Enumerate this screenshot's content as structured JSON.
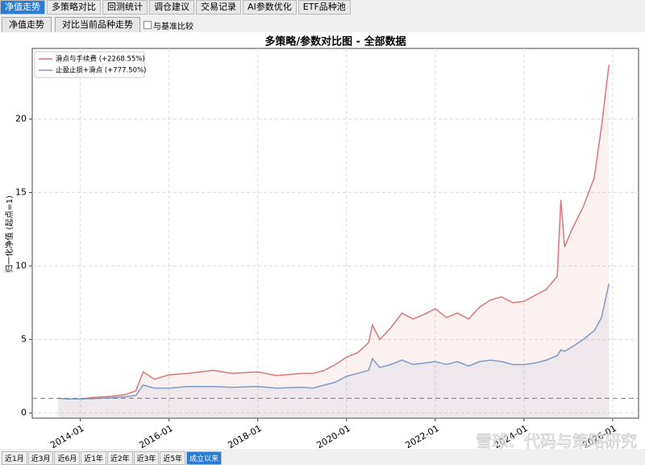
{
  "tabs": [
    "净值走势",
    "多策略对比",
    "回测统计",
    "调仓建议",
    "交易记录",
    "AI参数优化",
    "ETF品种池"
  ],
  "toolbar": {
    "buttons": [
      "净值走势",
      "对比当前品种走势"
    ],
    "checkbox": "与基准比较"
  },
  "range_buttons": [
    "近1月",
    "近3月",
    "近6月",
    "近1年",
    "近2年",
    "近3年",
    "近5年",
    "成立以来"
  ],
  "watermark": "雪球：代码与策略研究",
  "chart_data": {
    "type": "line",
    "title": "多策略/参数对比图 - 全部数据",
    "y_label": "归一化净值 (起点=1)",
    "x": [
      "2013-07",
      "2013-10",
      "2014-01",
      "2014-04",
      "2014-07",
      "2014-10",
      "2015-01",
      "2015-04",
      "2015-06",
      "2015-09",
      "2016-01",
      "2016-06",
      "2017-01",
      "2017-06",
      "2018-01",
      "2018-06",
      "2019-01",
      "2019-04",
      "2019-07",
      "2019-10",
      "2020-01",
      "2020-04",
      "2020-07",
      "2020-08",
      "2020-10",
      "2021-01",
      "2021-04",
      "2021-07",
      "2021-10",
      "2022-01",
      "2022-04",
      "2022-07",
      "2022-10",
      "2023-01",
      "2023-04",
      "2023-07",
      "2023-10",
      "2024-01",
      "2024-04",
      "2024-07",
      "2024-10",
      "2024-11",
      "2024-12",
      "2025-02",
      "2025-05",
      "2025-08",
      "2025-10",
      "2025-12"
    ],
    "series": [
      {
        "name": "滑点与手续费 (+2268.55%)",
        "color": "#d9777a",
        "values": [
          1.0,
          0.95,
          0.95,
          1.05,
          1.1,
          1.15,
          1.25,
          1.5,
          2.8,
          2.3,
          2.6,
          2.7,
          2.9,
          2.7,
          2.8,
          2.55,
          2.7,
          2.7,
          2.9,
          3.3,
          3.8,
          4.1,
          4.8,
          6.0,
          5.0,
          5.8,
          6.8,
          6.4,
          6.7,
          7.1,
          6.5,
          6.8,
          6.4,
          7.2,
          7.7,
          7.9,
          7.5,
          7.6,
          8.0,
          8.4,
          9.3,
          14.5,
          11.3,
          12.5,
          14.0,
          16.0,
          19.5,
          23.7
        ]
      },
      {
        "name": "止盈止损+滑点 (+777.50%)",
        "color": "#7f9cc2",
        "values": [
          1.0,
          0.95,
          0.95,
          0.98,
          1.0,
          1.05,
          1.1,
          1.2,
          1.9,
          1.7,
          1.7,
          1.8,
          1.8,
          1.75,
          1.8,
          1.7,
          1.75,
          1.7,
          1.9,
          2.1,
          2.5,
          2.7,
          2.9,
          3.7,
          3.1,
          3.3,
          3.6,
          3.3,
          3.4,
          3.5,
          3.3,
          3.5,
          3.2,
          3.5,
          3.6,
          3.5,
          3.3,
          3.3,
          3.4,
          3.6,
          3.9,
          4.3,
          4.2,
          4.5,
          5.0,
          5.6,
          6.5,
          8.8
        ]
      }
    ],
    "xlim": [
      "2012-12",
      "2026-08"
    ],
    "xticks": [
      "2014-01",
      "2016-01",
      "2018-01",
      "2020-01",
      "2022-01",
      "2024-01",
      "2026-01"
    ],
    "ylim": [
      -0.35,
      24.8
    ],
    "yticks": [
      0,
      5,
      10,
      15,
      20
    ],
    "baseline": 1,
    "grid": true,
    "legend": "upper-left",
    "fill": true
  }
}
